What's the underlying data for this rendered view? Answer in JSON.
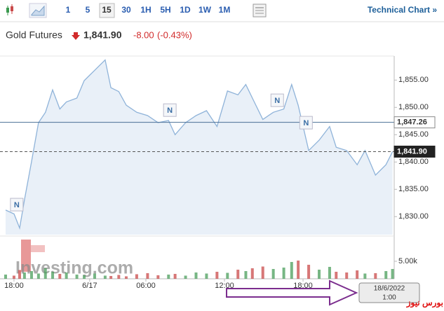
{
  "toolbar": {
    "intervals": [
      "1",
      "5",
      "15",
      "30",
      "1H",
      "5H",
      "1D",
      "1W",
      "1M"
    ],
    "selected": "15",
    "technical": "Technical Chart »"
  },
  "quote": {
    "name": "Gold Futures",
    "price": "1,841.90",
    "change": "-8.00",
    "change_pct": "(-0.43%)"
  },
  "chart_data": {
    "type": "line",
    "x": [
      -0.64,
      0,
      0.43,
      0.8,
      1.34,
      1.87,
      2.4,
      2.95,
      3.5,
      4.0,
      4.8,
      5.36,
      6.16,
      6.96,
      7.4,
      8.0,
      8.57,
      9.37,
      10.2,
      11.0,
      11.8,
      12.3,
      13.1,
      13.9,
      14.7,
      15.5,
      16.3,
      17.1,
      17.7,
      18.2,
      19.0,
      19.8,
      20.6,
      21.2,
      21.7,
      22.5,
      23.3,
      24.1,
      24.6,
      25.4,
      26.2,
      26.8,
      27.6,
      28.4,
      28.9
    ],
    "xlim": [
      -0.64,
      29.03
    ],
    "xticks": [
      {
        "value": 0,
        "label": "18:00"
      },
      {
        "value": 5.78,
        "label": "6/17"
      },
      {
        "value": 10.07,
        "label": "06:00"
      },
      {
        "value": 16.07,
        "label": "12:00"
      },
      {
        "value": 22.07,
        "label": "18:00"
      }
    ],
    "ylim": [
      1826.7,
      1859.4
    ],
    "yticks": [
      {
        "value": 1830,
        "label": "1,830.00"
      },
      {
        "value": 1835,
        "label": "1,835.00"
      },
      {
        "value": 1840,
        "label": "1,840.00"
      },
      {
        "value": 1845,
        "label": "1,845.00"
      },
      {
        "value": 1850,
        "label": "1,850.00"
      },
      {
        "value": 1855,
        "label": "1,855.00"
      }
    ],
    "series": [
      {
        "color": "#8fb3d9",
        "values": [
          1831.2,
          1830.5,
          1827.9,
          1833.1,
          1840.1,
          1847.2,
          1849.1,
          1853.2,
          1849.7,
          1851,
          1851.7,
          1854.9,
          1856.8,
          1858.7,
          1853.6,
          1852.9,
          1850.4,
          1849.1,
          1848.5,
          1847.2,
          1847.6,
          1845,
          1847.2,
          1848.5,
          1849.4,
          1846.5,
          1853,
          1852.3,
          1854.2,
          1851.7,
          1847.8,
          1849.1,
          1849.7,
          1854.2,
          1850.4,
          1842.1,
          1844,
          1846.5,
          1842.7,
          1842.1,
          1839.5,
          1842.1,
          1837.6,
          1839.5,
          1841.9
        ]
      }
    ],
    "volume": {
      "values": [
        1200,
        900,
        2500,
        1800,
        2200,
        1500,
        3000,
        2000,
        1400,
        1800,
        1200,
        1000,
        1500,
        900,
        800,
        1100,
        700,
        1300,
        1600,
        1000,
        1200,
        1400,
        900,
        1800,
        1500,
        2000,
        1700,
        2600,
        2200,
        3000,
        3500,
        2800,
        3200,
        4800,
        5200,
        4000,
        2600,
        3400,
        2000,
        1800,
        2400,
        1500,
        1600,
        2200,
        2800
      ],
      "ylim": [
        0,
        11600
      ],
      "yticks": [
        {
          "value": 5000,
          "label": "5.00k"
        }
      ],
      "up_color": "#4a9d5b",
      "down_color": "#c94a4a"
    },
    "price_lines": [
      {
        "value": 1847.26,
        "label": "1,847.26",
        "style": "solid"
      },
      {
        "value": 1841.9,
        "label": "1,841.90",
        "style": "dashed"
      }
    ],
    "annotations": [
      {
        "text": "N",
        "x": 0.21,
        "y": 1832.2
      },
      {
        "text": "N",
        "x": 11.9,
        "y": 1849.5
      },
      {
        "text": "N",
        "x": 20.1,
        "y": 1851.3
      },
      {
        "text": "N",
        "x": 22.3,
        "y": 1847.2
      }
    ]
  },
  "watermark": "Investing.com",
  "cursor_box": {
    "date": "18/6/2022",
    "time": "1:00"
  },
  "overlay_text": "بورس نيوز"
}
